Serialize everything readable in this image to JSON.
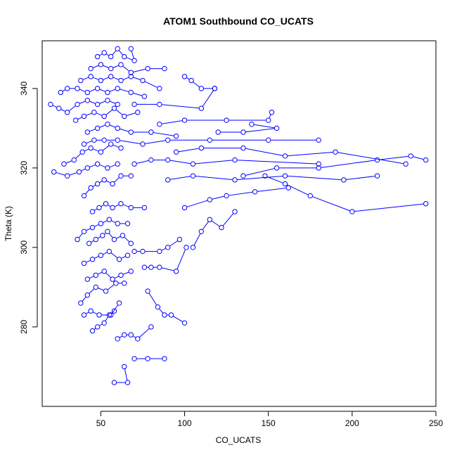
{
  "chart_data": {
    "type": "line",
    "title": "ATOM1 Southbound CO_UCATS",
    "xlabel": "CO_UCATS",
    "ylabel": "Theta (K)",
    "xlim": [
      15,
      250
    ],
    "ylim": [
      260,
      352
    ],
    "xticks": [
      50,
      100,
      150,
      200,
      250
    ],
    "yticks": [
      280,
      300,
      320,
      340
    ],
    "grid": false,
    "colors": {
      "series": "#0000ff"
    },
    "series": [
      {
        "values": [
          [
            58,
            266
          ],
          [
            66,
            266
          ],
          [
            64,
            270
          ]
        ]
      },
      {
        "values": [
          [
            70,
            272
          ],
          [
            78,
            272
          ],
          [
            88,
            272
          ]
        ]
      },
      {
        "values": [
          [
            60,
            277
          ],
          [
            64,
            278
          ],
          [
            68,
            278
          ],
          [
            72,
            277
          ],
          [
            80,
            280
          ]
        ]
      },
      {
        "values": [
          [
            45,
            279
          ],
          [
            48,
            280
          ],
          [
            52,
            281
          ],
          [
            55,
            283
          ],
          [
            58,
            284
          ]
        ]
      },
      {
        "values": [
          [
            40,
            283
          ],
          [
            44,
            284
          ],
          [
            49,
            283
          ],
          [
            56,
            283
          ],
          [
            61,
            286
          ]
        ]
      },
      {
        "values": [
          [
            38,
            286
          ],
          [
            42,
            288
          ],
          [
            47,
            290
          ],
          [
            53,
            289
          ],
          [
            59,
            291
          ],
          [
            64,
            291
          ]
        ]
      },
      {
        "values": [
          [
            100,
            281
          ],
          [
            92,
            283
          ],
          [
            88,
            283
          ],
          [
            84,
            285
          ],
          [
            78,
            289
          ]
        ]
      },
      {
        "values": [
          [
            42,
            292
          ],
          [
            47,
            293
          ],
          [
            52,
            294
          ],
          [
            57,
            292
          ],
          [
            62,
            293
          ],
          [
            68,
            294
          ]
        ]
      },
      {
        "values": [
          [
            76,
            295
          ],
          [
            80,
            295
          ],
          [
            85,
            295
          ],
          [
            95,
            294
          ],
          [
            101,
            300
          ]
        ]
      },
      {
        "values": [
          [
            40,
            296
          ],
          [
            45,
            297
          ],
          [
            50,
            298
          ],
          [
            55,
            299
          ],
          [
            61,
            297
          ],
          [
            66,
            298
          ]
        ]
      },
      {
        "values": [
          [
            70,
            299
          ],
          [
            75,
            299
          ],
          [
            85,
            299
          ],
          [
            90,
            300
          ],
          [
            97,
            302
          ]
        ]
      },
      {
        "values": [
          [
            43,
            301
          ],
          [
            47,
            302
          ],
          [
            51,
            303
          ],
          [
            54,
            304
          ],
          [
            58,
            302
          ],
          [
            63,
            303
          ],
          [
            68,
            301
          ]
        ]
      },
      {
        "values": [
          [
            36,
            302
          ],
          [
            40,
            304
          ],
          [
            45,
            305
          ],
          [
            50,
            306
          ],
          [
            55,
            307
          ],
          [
            60,
            306
          ],
          [
            66,
            306
          ]
        ]
      },
      {
        "values": [
          [
            105,
            300
          ],
          [
            110,
            304
          ],
          [
            115,
            307
          ],
          [
            122,
            305
          ],
          [
            130,
            309
          ]
        ]
      },
      {
        "values": [
          [
            45,
            309
          ],
          [
            49,
            310
          ],
          [
            53,
            311
          ],
          [
            57,
            310
          ],
          [
            62,
            311
          ],
          [
            68,
            310
          ],
          [
            76,
            310
          ]
        ]
      },
      {
        "values": [
          [
            100,
            310
          ],
          [
            115,
            312
          ],
          [
            125,
            313
          ],
          [
            142,
            314
          ],
          [
            162,
            315
          ]
        ]
      },
      {
        "values": [
          [
            244,
            311
          ],
          [
            200,
            309
          ],
          [
            175,
            313
          ],
          [
            160,
            316
          ],
          [
            148,
            318
          ]
        ]
      },
      {
        "values": [
          [
            40,
            313
          ],
          [
            44,
            315
          ],
          [
            48,
            316
          ],
          [
            52,
            317
          ],
          [
            57,
            316
          ],
          [
            62,
            318
          ],
          [
            68,
            318
          ]
        ]
      },
      {
        "values": [
          [
            90,
            317
          ],
          [
            105,
            318
          ],
          [
            130,
            317
          ],
          [
            160,
            318
          ],
          [
            195,
            317
          ],
          [
            215,
            318
          ]
        ]
      },
      {
        "values": [
          [
            22,
            319
          ],
          [
            30,
            318
          ],
          [
            37,
            319
          ],
          [
            42,
            320
          ],
          [
            48,
            321
          ],
          [
            54,
            320
          ],
          [
            60,
            321
          ]
        ]
      },
      {
        "values": [
          [
            244,
            322
          ],
          [
            235,
            323
          ],
          [
            215,
            322
          ],
          [
            180,
            320
          ],
          [
            155,
            320
          ],
          [
            135,
            318
          ]
        ]
      },
      {
        "values": [
          [
            70,
            321
          ],
          [
            80,
            322
          ],
          [
            90,
            322
          ],
          [
            105,
            321
          ],
          [
            130,
            322
          ],
          [
            180,
            321
          ]
        ]
      },
      {
        "values": [
          [
            28,
            321
          ],
          [
            34,
            322
          ],
          [
            39,
            324
          ],
          [
            44,
            325
          ],
          [
            50,
            324
          ],
          [
            56,
            326
          ],
          [
            62,
            325
          ]
        ]
      },
      {
        "values": [
          [
            95,
            324
          ],
          [
            110,
            325
          ],
          [
            135,
            325
          ],
          [
            160,
            323
          ],
          [
            190,
            324
          ],
          [
            232,
            321
          ]
        ]
      },
      {
        "values": [
          [
            40,
            326
          ],
          [
            46,
            327
          ],
          [
            52,
            327
          ],
          [
            60,
            327
          ],
          [
            75,
            326
          ],
          [
            90,
            327
          ],
          [
            115,
            327
          ],
          [
            150,
            327
          ],
          [
            180,
            327
          ]
        ]
      },
      {
        "values": [
          [
            42,
            329
          ],
          [
            48,
            330
          ],
          [
            54,
            331
          ],
          [
            60,
            330
          ],
          [
            68,
            329
          ],
          [
            80,
            329
          ],
          [
            95,
            328
          ]
        ]
      },
      {
        "values": [
          [
            120,
            329
          ],
          [
            135,
            329
          ],
          [
            155,
            330
          ],
          [
            140,
            331
          ]
        ]
      },
      {
        "values": [
          [
            35,
            332
          ],
          [
            40,
            333
          ],
          [
            46,
            334
          ],
          [
            52,
            333
          ],
          [
            58,
            335
          ],
          [
            64,
            333
          ],
          [
            72,
            334
          ]
        ]
      },
      {
        "values": [
          [
            85,
            331
          ],
          [
            100,
            332
          ],
          [
            125,
            332
          ],
          [
            150,
            332
          ],
          [
            152,
            334
          ]
        ]
      },
      {
        "values": [
          [
            20,
            336
          ],
          [
            25,
            335
          ],
          [
            30,
            334
          ],
          [
            36,
            336
          ],
          [
            42,
            337
          ],
          [
            48,
            336
          ],
          [
            54,
            337
          ],
          [
            60,
            336
          ]
        ]
      },
      {
        "values": [
          [
            70,
            336
          ],
          [
            85,
            336
          ],
          [
            110,
            335
          ],
          [
            118,
            340
          ]
        ]
      },
      {
        "values": [
          [
            26,
            339
          ],
          [
            30,
            340
          ],
          [
            36,
            340
          ],
          [
            42,
            339
          ],
          [
            48,
            340
          ],
          [
            54,
            339
          ],
          [
            60,
            340
          ],
          [
            68,
            339
          ],
          [
            76,
            338
          ]
        ]
      },
      {
        "values": [
          [
            38,
            342
          ],
          [
            44,
            343
          ],
          [
            50,
            342
          ],
          [
            56,
            343
          ],
          [
            62,
            342
          ],
          [
            68,
            343
          ],
          [
            75,
            342
          ],
          [
            85,
            340
          ]
        ]
      },
      {
        "values": [
          [
            100,
            343
          ],
          [
            104,
            342
          ],
          [
            110,
            340
          ],
          [
            118,
            340
          ]
        ]
      },
      {
        "values": [
          [
            44,
            345
          ],
          [
            50,
            346
          ],
          [
            56,
            345
          ],
          [
            62,
            346
          ],
          [
            68,
            344
          ],
          [
            78,
            345
          ],
          [
            88,
            345
          ]
        ]
      },
      {
        "values": [
          [
            48,
            348
          ],
          [
            52,
            349
          ],
          [
            56,
            348
          ],
          [
            60,
            350
          ],
          [
            64,
            348
          ],
          [
            70,
            347
          ],
          [
            68,
            350
          ]
        ]
      }
    ]
  }
}
